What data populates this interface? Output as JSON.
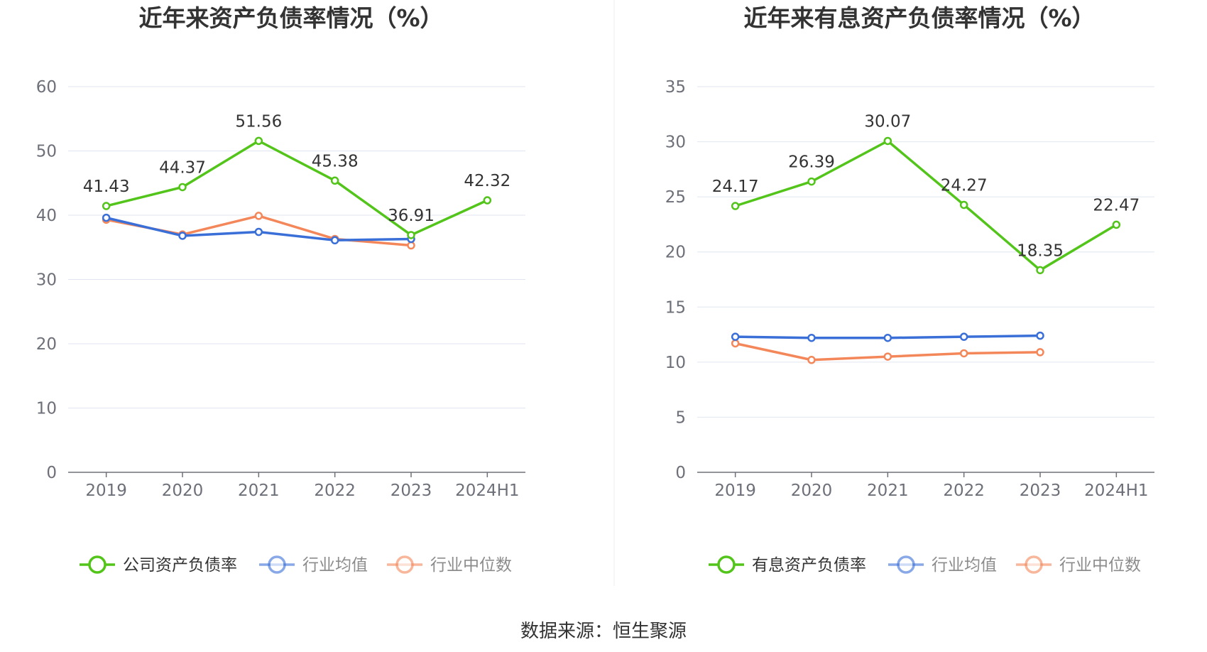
{
  "source_label": "数据来源：恒生聚源",
  "chart_data": [
    {
      "type": "line",
      "title": "近年来资产负债率情况（%）",
      "categories": [
        "2019",
        "2020",
        "2021",
        "2022",
        "2023",
        "2024H1"
      ],
      "ylim": [
        0,
        60
      ],
      "yticks": [
        0,
        10,
        20,
        30,
        40,
        50,
        60
      ],
      "grid": true,
      "legend_position": "bottom",
      "series": [
        {
          "name": "公司资产负债率",
          "color": "#52c41a",
          "labeled": true,
          "values": [
            41.43,
            44.37,
            51.56,
            45.38,
            36.91,
            42.32
          ]
        },
        {
          "name": "行业均值",
          "color": "#3a6fd8",
          "labeled": false,
          "values": [
            39.6,
            36.8,
            37.4,
            36.1,
            36.3,
            null
          ]
        },
        {
          "name": "行业中位数",
          "color": "#f4875a",
          "labeled": false,
          "values": [
            39.3,
            37.0,
            39.9,
            36.3,
            35.3,
            null
          ]
        }
      ]
    },
    {
      "type": "line",
      "title": "近年来有息资产负债率情况（%）",
      "categories": [
        "2019",
        "2020",
        "2021",
        "2022",
        "2023",
        "2024H1"
      ],
      "ylim": [
        0,
        35
      ],
      "yticks": [
        0,
        5,
        10,
        15,
        20,
        25,
        30,
        35
      ],
      "grid": true,
      "legend_position": "bottom",
      "series": [
        {
          "name": "有息资产负债率",
          "color": "#52c41a",
          "labeled": true,
          "values": [
            24.17,
            26.39,
            30.07,
            24.27,
            18.35,
            22.47
          ]
        },
        {
          "name": "行业均值",
          "color": "#3a6fd8",
          "labeled": false,
          "values": [
            12.3,
            12.2,
            12.2,
            12.3,
            12.4,
            null
          ]
        },
        {
          "name": "行业中位数",
          "color": "#f4875a",
          "labeled": false,
          "values": [
            11.7,
            10.2,
            10.5,
            10.8,
            10.9,
            null
          ]
        }
      ]
    }
  ]
}
